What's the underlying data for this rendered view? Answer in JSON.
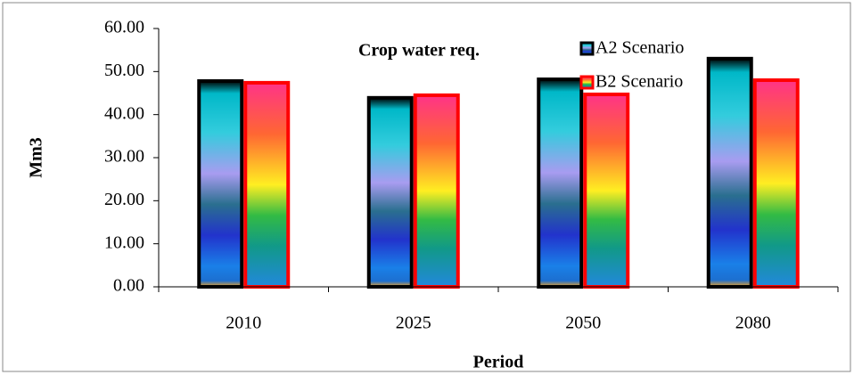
{
  "chart_data": {
    "type": "bar",
    "title": "Crop water req.",
    "x_label": "Period",
    "y_label": "Mm3",
    "categories": [
      "2010",
      "2025",
      "2050",
      "2080"
    ],
    "series": [
      {
        "name": "A2 Scenario",
        "color": "#000000",
        "values": [
          47.8,
          43.9,
          48.2,
          53.0
        ]
      },
      {
        "name": "B2 Scenario",
        "color": "#ff0000",
        "values": [
          47.4,
          44.5,
          44.7,
          48.0
        ]
      }
    ],
    "ylim": [
      0,
      60
    ],
    "yticks": [
      {
        "value": 0,
        "label": "0.00"
      },
      {
        "value": 10,
        "label": "10.00"
      },
      {
        "value": 20,
        "label": "20.00"
      },
      {
        "value": 30,
        "label": "30.00"
      },
      {
        "value": 40,
        "label": "40.00"
      },
      {
        "value": 50,
        "label": "50.00"
      },
      {
        "value": 60,
        "label": "60.00"
      }
    ],
    "grid": false
  }
}
